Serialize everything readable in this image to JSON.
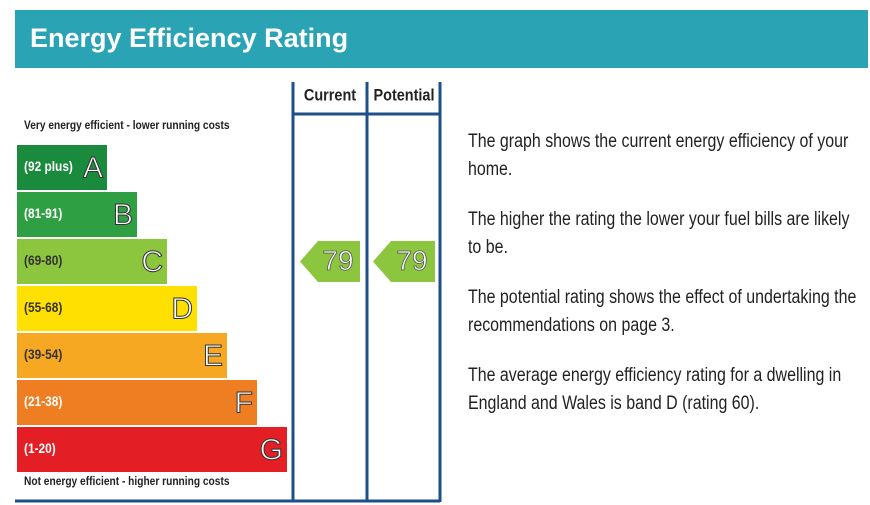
{
  "title": "Energy Efficiency Rating",
  "top_label": "Very energy efficient - lower running costs",
  "bottom_label": "Not energy efficient - higher running costs",
  "columns": [
    "Current",
    "Potential"
  ],
  "bands": [
    {
      "range": "(92 plus)",
      "letter": "A",
      "color": "#1a8a3c"
    },
    {
      "range": "(81-91)",
      "letter": "B",
      "color": "#2ea043"
    },
    {
      "range": "(69-80)",
      "letter": "C",
      "color": "#8cc63f"
    },
    {
      "range": "(55-68)",
      "letter": "D",
      "color": "#ffe000"
    },
    {
      "range": "(39-54)",
      "letter": "E",
      "color": "#f7a823"
    },
    {
      "range": "(21-38)",
      "letter": "F",
      "color": "#ef7d22"
    },
    {
      "range": "(1-20)",
      "letter": "G",
      "color": "#e31e24"
    }
  ],
  "current": 79,
  "potential": 79,
  "paragraphs": [
    "The graph shows the current energy efficiency of your home.",
    "The higher the rating the lower your fuel bills are likely to be.",
    "The potential rating shows the effect of undertaking the recommendations on page 3.",
    "The average energy efficiency rating for a dwelling in England and Wales is band D (rating 60)."
  ]
}
